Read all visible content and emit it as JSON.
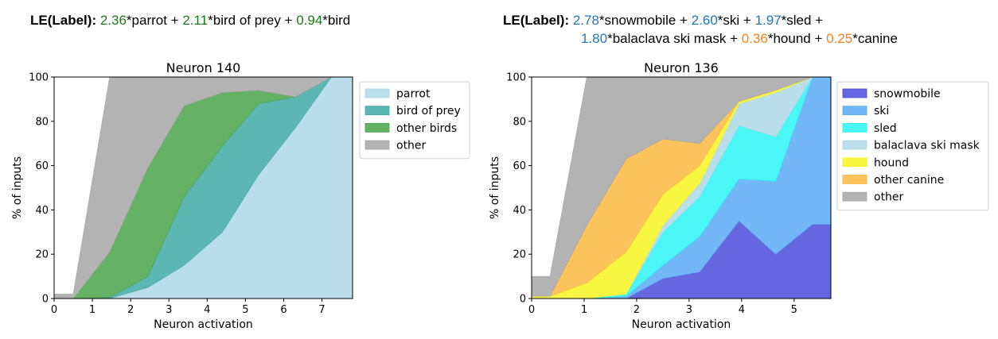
{
  "formulas": {
    "left": {
      "prefix": "LE(Label):",
      "terms": [
        {
          "coef": "2.36",
          "label": "*parrot",
          "sep": " + ",
          "color": "#1a7a1a"
        },
        {
          "coef": "2.11",
          "label": "*bird of prey",
          "sep": " + ",
          "color": "#1a7a1a"
        },
        {
          "coef": "0.94",
          "label": "*bird",
          "sep": "",
          "color": "#1a7a1a"
        }
      ]
    },
    "right": {
      "prefix": "LE(Label):",
      "line1": [
        {
          "coef": "2.78",
          "label": "*snowmobile",
          "sep": " + ",
          "color": "#1f77b4"
        },
        {
          "coef": "2.60",
          "label": "*ski",
          "sep": " + ",
          "color": "#1f77b4"
        },
        {
          "coef": "1.97",
          "label": "*sled",
          "sep": " +",
          "color": "#1f77b4"
        }
      ],
      "line2": [
        {
          "coef": "1.80",
          "label": "*balaclava ski mask",
          "sep": " + ",
          "color": "#1f77b4"
        },
        {
          "coef": "0.36",
          "label": "*hound",
          "sep": " + ",
          "color": "#ff7f0e"
        },
        {
          "coef": "0.25",
          "label": "*canine",
          "sep": "",
          "color": "#ff7f0e"
        }
      ]
    }
  },
  "chart_data": [
    {
      "type": "area",
      "stacked": true,
      "title": "Neuron 140",
      "xlabel": "Neuron activation",
      "ylabel": "% of inputs",
      "xlim": [
        0,
        7.8
      ],
      "ylim": [
        0,
        100
      ],
      "xticks": [
        0,
        1,
        2,
        3,
        4,
        5,
        6,
        7
      ],
      "yticks": [
        0,
        20,
        40,
        60,
        80,
        100
      ],
      "legend_position": "right",
      "x": [
        0,
        0.5,
        1.45,
        2.45,
        3.4,
        4.4,
        5.35,
        6.3,
        7.25,
        7.8
      ],
      "series": [
        {
          "name": "parrot",
          "color": "#add8e6",
          "values": [
            0,
            0,
            0,
            5,
            15,
            30,
            56,
            77,
            100,
            100
          ]
        },
        {
          "name": "bird of prey",
          "color": "#40a9a4",
          "values": [
            0,
            0,
            0.5,
            5,
            31,
            39,
            32,
            14,
            0,
            0
          ]
        },
        {
          "name": "other birds",
          "color": "#4aa54a",
          "values": [
            0,
            0,
            20.5,
            49,
            41,
            24,
            6,
            0,
            0,
            0
          ]
        },
        {
          "name": "other",
          "color": "#a6a6a6",
          "values": [
            2,
            2,
            79,
            41,
            13,
            7,
            6,
            9,
            0,
            0
          ]
        }
      ]
    },
    {
      "type": "area",
      "stacked": true,
      "title": "Neuron 136",
      "xlabel": "Neuron activation",
      "ylabel": "% of inputs",
      "xlim": [
        0,
        5.7
      ],
      "ylim": [
        0,
        100
      ],
      "xticks": [
        0,
        1,
        2,
        3,
        4,
        5
      ],
      "yticks": [
        0,
        20,
        40,
        60,
        80,
        100
      ],
      "legend_position": "right",
      "x": [
        0,
        0.35,
        1.05,
        1.8,
        2.5,
        3.2,
        3.95,
        4.65,
        5.35,
        5.7
      ],
      "series": [
        {
          "name": "snowmobile",
          "color": "#4b4bdc",
          "values": [
            0,
            0,
            0,
            0,
            9,
            12,
            35,
            20,
            33.5,
            33.5
          ]
        },
        {
          "name": "ski",
          "color": "#5aaaf5",
          "values": [
            0,
            0,
            0,
            1,
            6,
            16,
            19,
            33,
            66.5,
            66.5
          ]
        },
        {
          "name": "sled",
          "color": "#2af5f5",
          "values": [
            0,
            0,
            0,
            1,
            15,
            18,
            24,
            20,
            0,
            0
          ]
        },
        {
          "name": "balaclava ski mask",
          "color": "#add8e6",
          "values": [
            0,
            0,
            0,
            0,
            3,
            6,
            10,
            20,
            0,
            0
          ]
        },
        {
          "name": "hound",
          "color": "#f7f51e",
          "values": [
            1,
            1,
            7,
            19,
            14,
            8,
            1,
            1,
            0,
            0
          ]
        },
        {
          "name": "other canine",
          "color": "#fbb73e",
          "values": [
            0,
            0,
            26,
            42,
            25,
            10,
            0,
            0,
            0,
            0
          ]
        },
        {
          "name": "other",
          "color": "#a6a6a6",
          "values": [
            9,
            9,
            67,
            37,
            28,
            30,
            11,
            6,
            0,
            0
          ]
        }
      ]
    }
  ]
}
